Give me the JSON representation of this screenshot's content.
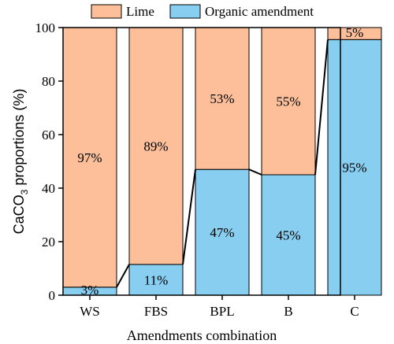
{
  "chart_data": {
    "type": "bar",
    "subtype": "stacked-100-percent",
    "categories": [
      "WS",
      "FBS",
      "BPL",
      "B",
      "C"
    ],
    "series": [
      {
        "name": "Lime",
        "values": [
          97,
          88.5,
          53,
          55,
          4.5
        ],
        "labels": [
          "97%",
          "89%",
          "53%",
          "55%",
          "5%"
        ],
        "color": "#FDBF9A"
      },
      {
        "name": "Organic amendment",
        "values": [
          3,
          11.5,
          47,
          45,
          95.5
        ],
        "labels": [
          "3%",
          "11%",
          "47%",
          "45%",
          "95%"
        ],
        "color": "#87CEF0"
      }
    ],
    "xlabel": "Amendments combination",
    "ylabel_prefix": "CaCO",
    "ylabel_sub": "3",
    "ylabel_suffix": " proportions (%)",
    "ylim": [
      0,
      100
    ],
    "yticks": [
      0,
      20,
      40,
      60,
      80,
      100
    ],
    "legend_position": "top",
    "connector_lines": true,
    "grid": false
  }
}
